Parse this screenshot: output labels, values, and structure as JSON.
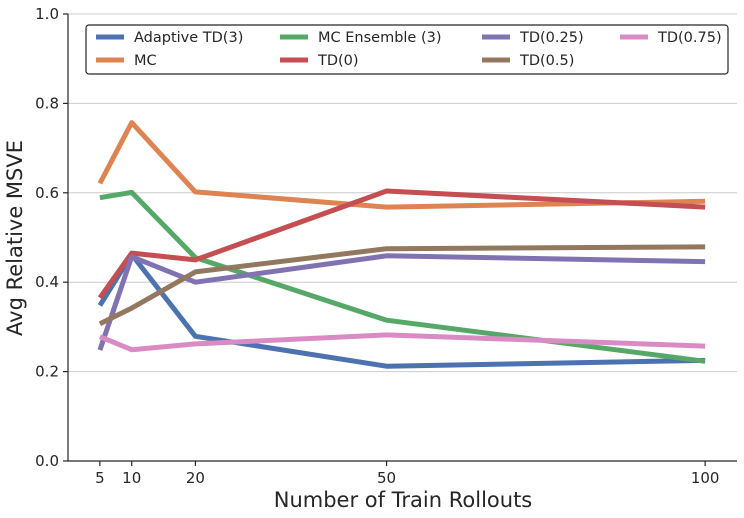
{
  "chart_data": {
    "type": "line",
    "title": "",
    "xlabel": "Number of Train Rollouts",
    "ylabel": "Avg Relative MSVE",
    "x": [
      5,
      10,
      20,
      50,
      100
    ],
    "xticks": [
      "5",
      "10",
      "20",
      "50",
      "100"
    ],
    "xlim": [
      0,
      105
    ],
    "ylim": [
      0.0,
      1.0
    ],
    "yticks": [
      "0.0",
      "0.2",
      "0.4",
      "0.6",
      "0.8",
      "1.0"
    ],
    "grid": "horizontal",
    "legend_position": "top",
    "series": [
      {
        "name": "Adaptive TD(3)",
        "color": "#4c72b0",
        "values": [
          0.348,
          0.462,
          0.279,
          0.212,
          0.225
        ]
      },
      {
        "name": "MC",
        "color": "#dd8452",
        "values": [
          0.621,
          0.757,
          0.602,
          0.568,
          0.581
        ]
      },
      {
        "name": "MC Ensemble (3)",
        "color": "#55a868",
        "values": [
          0.589,
          0.601,
          0.455,
          0.315,
          0.223
        ]
      },
      {
        "name": "TD(0)",
        "color": "#c44e52",
        "values": [
          0.365,
          0.465,
          0.45,
          0.604,
          0.568
        ]
      },
      {
        "name": "TD(0.25)",
        "color": "#8172b2",
        "values": [
          0.248,
          0.457,
          0.4,
          0.459,
          0.446
        ]
      },
      {
        "name": "TD(0.5)",
        "color": "#937860",
        "values": [
          0.307,
          0.342,
          0.423,
          0.475,
          0.479
        ]
      },
      {
        "name": "TD(0.75)",
        "color": "#da8bc3",
        "values": [
          0.278,
          0.249,
          0.262,
          0.282,
          0.257
        ]
      }
    ]
  }
}
